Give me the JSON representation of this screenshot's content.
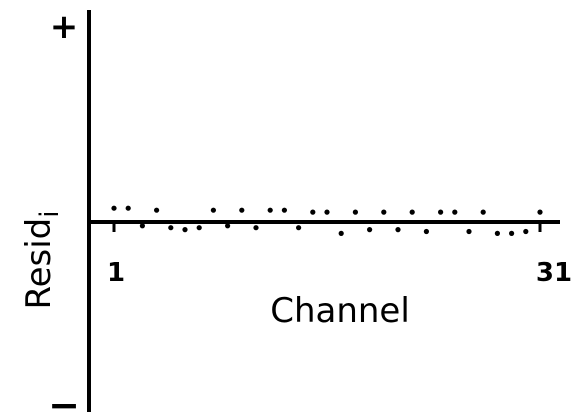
{
  "chart_data": {
    "type": "scatter",
    "title": "",
    "xlabel": "Channel",
    "ylabel_main": "Resid",
    "ylabel_sub": "i",
    "y_top_label": "+",
    "y_bottom_label": "−",
    "x_tick_labels": [
      "1",
      "31"
    ],
    "xlim": [
      1,
      31
    ],
    "ylim": [
      -1,
      1
    ],
    "grid": false,
    "legend": "none",
    "series": [
      {
        "x": [
          1,
          2,
          3,
          4,
          5,
          6,
          7,
          8,
          9,
          10,
          11,
          12,
          13,
          14,
          15,
          16,
          17,
          18,
          19,
          20,
          21,
          22,
          23,
          24,
          25,
          26,
          27,
          28,
          29,
          30,
          31
        ],
        "y": [
          0.07,
          0.07,
          -0.02,
          0.06,
          -0.03,
          -0.04,
          -0.03,
          0.06,
          -0.02,
          0.06,
          -0.03,
          0.06,
          0.06,
          -0.03,
          0.05,
          0.05,
          -0.06,
          0.05,
          -0.04,
          0.05,
          -0.04,
          0.05,
          -0.05,
          0.05,
          0.05,
          -0.05,
          0.05,
          -0.06,
          -0.06,
          -0.05,
          0.05
        ]
      }
    ]
  }
}
